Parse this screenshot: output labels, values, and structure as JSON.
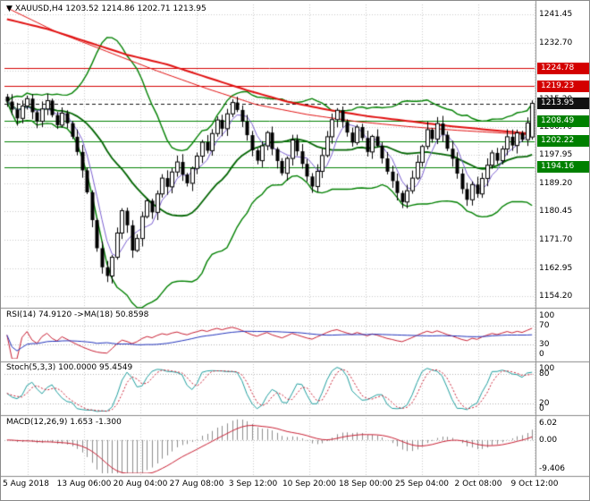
{
  "header": {
    "marker": "▼",
    "text": "XAUUSD,H4 1203.52 1214.86 1202.71 1213.95"
  },
  "price_axis": {
    "labels": [
      "1241.45",
      "1232.70",
      "1223.95",
      "1215.20",
      "1206.70",
      "1197.95",
      "1189.20",
      "1180.45",
      "1171.70",
      "1162.95",
      "1154.20"
    ]
  },
  "price_levels": [
    {
      "label": "1224.78",
      "value": 1224.78,
      "color": "#d40000",
      "style": "solid",
      "role": "resistance"
    },
    {
      "label": "1219.23",
      "value": 1219.23,
      "color": "#d40000",
      "style": "solid",
      "role": "resistance"
    },
    {
      "label": "1213.95",
      "value": 1213.95,
      "color": "#111111",
      "style": "dash",
      "role": "current-price"
    },
    {
      "label": "1208.49",
      "value": 1208.49,
      "color": "#008000",
      "style": "solid",
      "role": "support"
    },
    {
      "label": "1202.22",
      "value": 1202.22,
      "color": "#008000",
      "style": "solid",
      "role": "support"
    },
    {
      "label": "1194.16",
      "value": 1194.16,
      "color": "#008000",
      "style": "solid",
      "role": "support"
    }
  ],
  "panels": {
    "rsi": {
      "label": "RSI(14) 74.9120 ->MA(18) 50.8598",
      "axis_labels": [
        "100",
        "70",
        "30",
        "0"
      ],
      "axis_values": [
        100,
        70,
        30,
        0
      ],
      "levels": [
        70,
        30
      ],
      "range": [
        0,
        100
      ],
      "line_color": "#c81e32",
      "ma_color": "#2233bb"
    },
    "stoch": {
      "label": "Stoch(5,3,3) 100.0000 95.4549",
      "axis_labels": [
        "100",
        "80",
        "20",
        "0"
      ],
      "axis_values": [
        100,
        80,
        20,
        0
      ],
      "levels": [
        80,
        20
      ],
      "range": [
        0,
        100
      ],
      "k_color": "#1f9e9e",
      "d_color": "#c81e32"
    },
    "macd": {
      "label": "MACD(12,26,9) 1.653 -1.300",
      "axis_labels": [
        "6.02",
        "0.00",
        "-9.406"
      ],
      "axis_values": [
        6.02,
        0,
        -9.406
      ],
      "range": [
        -9.406,
        6.02
      ],
      "hist_color": "#8c8c8c",
      "signal_color": "#c81e32"
    }
  },
  "chart_data": {
    "type": "candlestick",
    "title": "XAUUSD,H4",
    "symbol": "XAUUSD",
    "timeframe": "H4",
    "ylim": [
      1151.5,
      1244.0
    ],
    "y_tick_step": 8.75,
    "background": "#ffffff",
    "grid_color": "#c9c9c9",
    "candle_color": "#000000",
    "x_tick_labels": [
      "5 Aug 2018",
      "13 Aug 06:00",
      "20 Aug 04:00",
      "27 Aug 08:00",
      "3 Sep 12:00",
      "10 Sep 20:00",
      "18 Sep 00:00",
      "25 Sep 04:00",
      "2 Oct 08:00",
      "9 Oct 12:00"
    ],
    "last_bar": {
      "open": 1203.52,
      "high": 1214.86,
      "low": 1202.71,
      "close": 1213.95
    },
    "closes": [
      1214.5,
      1212.0,
      1209.3,
      1213.1,
      1215.4,
      1211.2,
      1208.4,
      1212.2,
      1214.8,
      1210.3,
      1207.2,
      1210.9,
      1207.8,
      1203.6,
      1198.9,
      1193.2,
      1186.4,
      1177.8,
      1169.1,
      1163.2,
      1160.5,
      1166.3,
      1173.8,
      1180.7,
      1176.2,
      1168.4,
      1172.1,
      1178.9,
      1183.8,
      1180.2,
      1185.9,
      1190.8,
      1188.1,
      1192.7,
      1195.8,
      1191.9,
      1189.2,
      1193.8,
      1197.6,
      1201.9,
      1199.3,
      1204.6,
      1208.8,
      1206.1,
      1210.7,
      1214.2,
      1211.9,
      1208.3,
      1204.1,
      1199.4,
      1196.2,
      1200.8,
      1204.9,
      1199.8,
      1196.1,
      1192.3,
      1196.9,
      1202.6,
      1199.1,
      1195.2,
      1191.3,
      1188.2,
      1192.9,
      1197.8,
      1203.6,
      1208.9,
      1211.8,
      1208.2,
      1204.9,
      1201.8,
      1206.6,
      1203.2,
      1198.9,
      1203.7,
      1200.8,
      1196.9,
      1192.8,
      1189.9,
      1186.2,
      1183.4,
      1186.9,
      1190.8,
      1195.7,
      1200.6,
      1205.8,
      1202.9,
      1207.7,
      1204.2,
      1199.9,
      1196.8,
      1192.2,
      1187.4,
      1184.1,
      1188.8,
      1185.9,
      1190.7,
      1194.8,
      1198.6,
      1196.2,
      1199.8,
      1203.6,
      1200.9,
      1204.8,
      1202.7,
      1207.9,
      1213.95
    ],
    "overlays": {
      "ma_red_slow": {
        "color": "#e01010",
        "width": 2,
        "anchors": [
          [
            0,
            1240.0
          ],
          [
            8,
            1237.0
          ],
          [
            16,
            1233.0
          ],
          [
            24,
            1229.0
          ],
          [
            32,
            1226.0
          ],
          [
            40,
            1222.0
          ],
          [
            48,
            1218.0
          ],
          [
            56,
            1214.5
          ],
          [
            64,
            1212.0
          ],
          [
            72,
            1210.0
          ],
          [
            80,
            1208.5
          ],
          [
            88,
            1207.0
          ],
          [
            96,
            1205.8
          ],
          [
            105,
            1204.5
          ]
        ]
      },
      "ma_red_fast": {
        "color": "#e01010",
        "width": 1,
        "anchors": [
          [
            0,
            1243.5
          ],
          [
            10,
            1236.0
          ],
          [
            20,
            1230.0
          ],
          [
            30,
            1224.0
          ],
          [
            40,
            1218.5
          ],
          [
            50,
            1213.5
          ],
          [
            60,
            1210.5
          ],
          [
            70,
            1208.3
          ],
          [
            80,
            1206.8
          ],
          [
            90,
            1205.6
          ],
          [
            105,
            1204.2
          ]
        ]
      },
      "ma_purple": {
        "period": 5,
        "color": "#7a5fd0",
        "width": 1
      },
      "bollinger": {
        "period": 20,
        "deviation": 2,
        "color": "#008000",
        "mid_color": "#006400"
      }
    },
    "indicators": {
      "rsi": {
        "period": 14,
        "current": 74.912,
        "ma_period": 18,
        "ma_current": 50.8598
      },
      "stochastic": {
        "k": 5,
        "d": 3,
        "slowing": 3,
        "current_k": 100.0,
        "current_d": 95.4549
      },
      "macd": {
        "fast": 12,
        "slow": 26,
        "signal": 9,
        "current": 1.653,
        "current_signal": -1.3
      }
    }
  }
}
